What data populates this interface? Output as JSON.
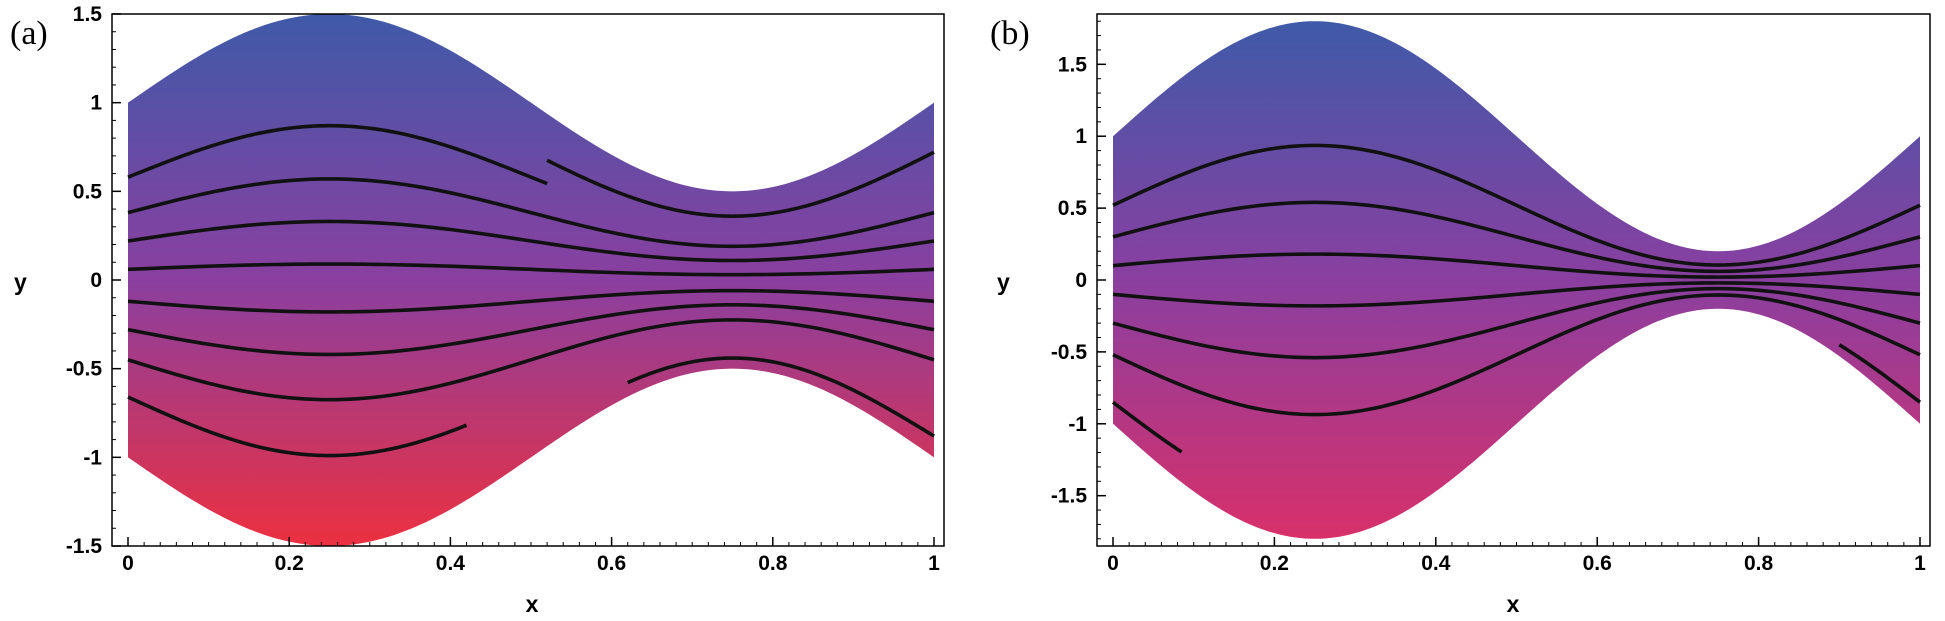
{
  "chart_data": [
    {
      "type": "area",
      "panel_label": "(a)",
      "xlabel": "x",
      "ylabel": "y",
      "xlim": [
        0,
        1
      ],
      "ylim": [
        -1.5,
        1.5
      ],
      "xticks": [
        0,
        0.2,
        0.4,
        0.6,
        0.8,
        1
      ],
      "xtick_labels": [
        "0",
        "0.2",
        "0.4",
        "0.6",
        "0.8",
        "1"
      ],
      "yticks": [
        -1.5,
        -1,
        -0.5,
        0,
        0.5,
        1,
        1.5
      ],
      "ytick_labels": [
        "-1.5",
        "-1",
        "-0.5",
        "0",
        "0.5",
        "1",
        "1.5"
      ],
      "region": {
        "description": "y between -(1 + 0.5 sin 2πx) and (1 + 0.5 sin 2πx)",
        "amplitude": 0.5
      },
      "colors": {
        "top": "#3f5aa8",
        "middle": "#8a3fa0",
        "bottom": "#ec3040",
        "curve": "#111111"
      },
      "series": [
        {
          "name": "streamline 1",
          "eta": 0.58,
          "x_range": [
            0,
            0.52
          ]
        },
        {
          "name": "streamline 2",
          "eta": 0.72,
          "x_range": [
            0.52,
            1
          ]
        },
        {
          "name": "streamline 3",
          "eta": 0.38,
          "x_range": [
            0,
            1
          ]
        },
        {
          "name": "streamline 4",
          "eta": 0.22,
          "x_range": [
            0,
            1
          ]
        },
        {
          "name": "streamline 5",
          "eta": 0.06,
          "x_range": [
            0,
            1
          ]
        },
        {
          "name": "streamline 6",
          "eta": -0.12,
          "x_range": [
            0,
            1
          ]
        },
        {
          "name": "streamline 7",
          "eta": -0.28,
          "x_range": [
            0,
            1
          ]
        },
        {
          "name": "streamline 8",
          "eta": -0.45,
          "x_range": [
            0,
            1
          ]
        },
        {
          "name": "streamline 9",
          "eta": -0.66,
          "x_range": [
            0,
            0.42
          ]
        },
        {
          "name": "streamline 10",
          "eta": -0.88,
          "x_range": [
            0.62,
            1
          ]
        }
      ]
    },
    {
      "type": "area",
      "panel_label": "(b)",
      "xlabel": "x",
      "ylabel": "y",
      "xlim": [
        0,
        1
      ],
      "ylim": [
        -1.85,
        1.85
      ],
      "xticks": [
        0,
        0.2,
        0.4,
        0.6,
        0.8,
        1
      ],
      "xtick_labels": [
        "0",
        "0.2",
        "0.4",
        "0.6",
        "0.8",
        "1"
      ],
      "yticks": [
        -1.5,
        -1,
        -0.5,
        0,
        0.5,
        1,
        1.5
      ],
      "ytick_labels": [
        "-1.5",
        "-1",
        "-0.5",
        "0",
        "0.5",
        "1",
        "1.5"
      ],
      "region": {
        "description": "y between -(1 + 0.8 sin 2πx) and (1 + 0.8 sin 2πx)",
        "amplitude": 0.8
      },
      "colors": {
        "top": "#3f5aa8",
        "middle": "#8a3fa0",
        "bottom": "#d8306a",
        "curve": "#111111"
      },
      "series": [
        {
          "name": "streamline 1",
          "eta": 0.52,
          "x_range": [
            0,
            1
          ]
        },
        {
          "name": "streamline 2",
          "eta": 0.3,
          "x_range": [
            0,
            1
          ]
        },
        {
          "name": "streamline 3",
          "eta": 0.1,
          "x_range": [
            0,
            1
          ]
        },
        {
          "name": "streamline 4",
          "eta": -0.1,
          "x_range": [
            0,
            1
          ]
        },
        {
          "name": "streamline 5",
          "eta": -0.3,
          "x_range": [
            0,
            1
          ]
        },
        {
          "name": "streamline 6",
          "eta": -0.52,
          "x_range": [
            0,
            1
          ]
        },
        {
          "name": "streamline 7",
          "eta": -0.85,
          "x_range": [
            0,
            0.085
          ]
        },
        {
          "name": "streamline 8",
          "eta": -0.85,
          "x_range": [
            0.9,
            1
          ]
        }
      ]
    }
  ]
}
